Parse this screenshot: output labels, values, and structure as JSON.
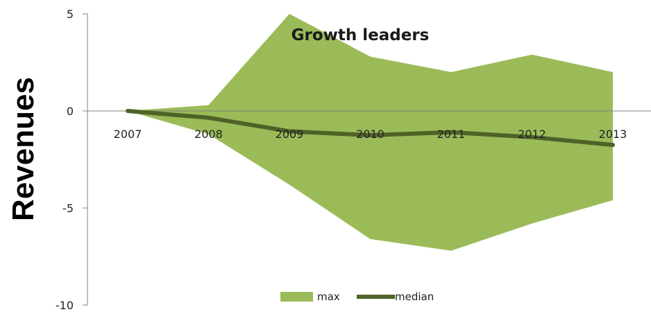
{
  "chart_data": {
    "type": "area",
    "title": "Growth leaders",
    "ylabel": "Revenues",
    "xlabel": "",
    "categories": [
      "2007",
      "2008",
      "2009",
      "2010",
      "2011",
      "2012",
      "2013"
    ],
    "ylim": [
      -10,
      5
    ],
    "yticks": [
      "5",
      "0",
      "-5",
      "-10"
    ],
    "ytick_values": [
      5,
      0,
      -5,
      -10
    ],
    "band": {
      "upper": [
        0,
        0.3,
        5.0,
        2.8,
        2.0,
        2.9,
        2.0
      ],
      "lower": [
        0,
        -1.2,
        -3.8,
        -6.6,
        -7.2,
        -5.8,
        -4.6
      ]
    },
    "series": [
      {
        "name": "max",
        "kind": "area",
        "color": "#9bbb59"
      },
      {
        "name": "median",
        "kind": "line",
        "color": "#4f6228",
        "values": [
          0,
          -0.35,
          -1.05,
          -1.25,
          -1.1,
          -1.35,
          -1.75
        ]
      }
    ],
    "legend_position": "bottom"
  }
}
